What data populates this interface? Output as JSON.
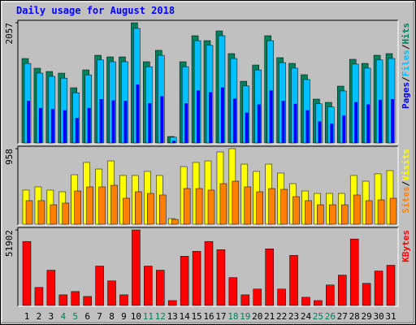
{
  "chart_data": [
    {
      "type": "bar",
      "title": "Daily usage for August 2018",
      "ylim": [
        0,
        2057
      ],
      "yticks": [
        2057
      ],
      "legend_separator": "/",
      "series": [
        {
          "name": "Hits",
          "color": "#00805C",
          "values": [
            1445,
            1279,
            1223,
            1195,
            945,
            1251,
            1501,
            1473,
            1473,
            2057,
            1390,
            1585,
            111,
            1390,
            1835,
            1751,
            1918,
            1529,
            1056,
            1334,
            1835,
            1460,
            1362,
            1168,
            751,
            695,
            973,
            1432,
            1362,
            1501,
            1529
          ]
        },
        {
          "name": "Files",
          "color": "#00C0FF",
          "values": [
            1360,
            1195,
            1140,
            1110,
            860,
            1165,
            1420,
            1390,
            1390,
            1960,
            1305,
            1500,
            100,
            1305,
            1750,
            1670,
            1835,
            1445,
            975,
            1250,
            1750,
            1375,
            1280,
            1085,
            670,
            615,
            890,
            1350,
            1280,
            1420,
            1445
          ]
        },
        {
          "name": "Pages",
          "color": "#0000FF",
          "values": [
            720,
            600,
            580,
            560,
            430,
            600,
            750,
            730,
            720,
            1000,
            680,
            800,
            40,
            680,
            900,
            870,
            950,
            760,
            520,
            660,
            900,
            720,
            670,
            560,
            370,
            330,
            470,
            700,
            660,
            740,
            750
          ]
        }
      ]
    },
    {
      "type": "bar",
      "ylim": [
        0,
        958
      ],
      "yticks": [
        958
      ],
      "legend_separator": "/",
      "series": [
        {
          "name": "Visits",
          "color": "#FFFF00",
          "values": [
            433,
            474,
            433,
            412,
            628,
            783,
            700,
            803,
            618,
            618,
            670,
            618,
            72,
            731,
            783,
            803,
            917,
            958,
            762,
            670,
            762,
            649,
            515,
            422,
            391,
            391,
            391,
            618,
            546,
            639,
            680
          ]
        },
        {
          "name": "Sites",
          "color": "#FF8000",
          "values": [
            299,
            299,
            247,
            268,
            422,
            474,
            474,
            494,
            330,
            412,
            391,
            371,
            62,
            453,
            453,
            433,
            515,
            546,
            474,
            412,
            453,
            443,
            350,
            299,
            247,
            247,
            247,
            371,
            299,
            309,
            330
          ]
        }
      ]
    },
    {
      "type": "bar",
      "ylim": [
        0,
        51902
      ],
      "yticks": [
        51902
      ],
      "categories": [
        "1",
        "2",
        "3",
        "4",
        "5",
        "6",
        "7",
        "8",
        "9",
        "10",
        "11",
        "12",
        "13",
        "14",
        "15",
        "16",
        "17",
        "18",
        "19",
        "20",
        "21",
        "22",
        "23",
        "24",
        "25",
        "26",
        "27",
        "28",
        "29",
        "30",
        "31"
      ],
      "category_colors": [
        "#000000",
        "#000000",
        "#000000",
        "#00805C",
        "#00805C",
        "#000000",
        "#000000",
        "#000000",
        "#000000",
        "#000000",
        "#00805C",
        "#00805C",
        "#000000",
        "#000000",
        "#000000",
        "#000000",
        "#000000",
        "#00805C",
        "#00805C",
        "#000000",
        "#000000",
        "#000000",
        "#000000",
        "#000000",
        "#00805C",
        "#00805C",
        "#000000",
        "#000000",
        "#000000",
        "#000000",
        "#000000"
      ],
      "series": [
        {
          "name": "KBytes",
          "color": "#FF0000",
          "values": [
            43992,
            12408,
            24252,
            7332,
            9588,
            6204,
            27072,
            16920,
            7332,
            51902,
            27072,
            24252,
            3384,
            33840,
            37224,
            43992,
            38352,
            19176,
            7332,
            11280,
            38916,
            11280,
            34404,
            5640,
            3384,
            14100,
            20868,
            45684,
            15228,
            23688,
            27636
          ]
        }
      ]
    }
  ]
}
